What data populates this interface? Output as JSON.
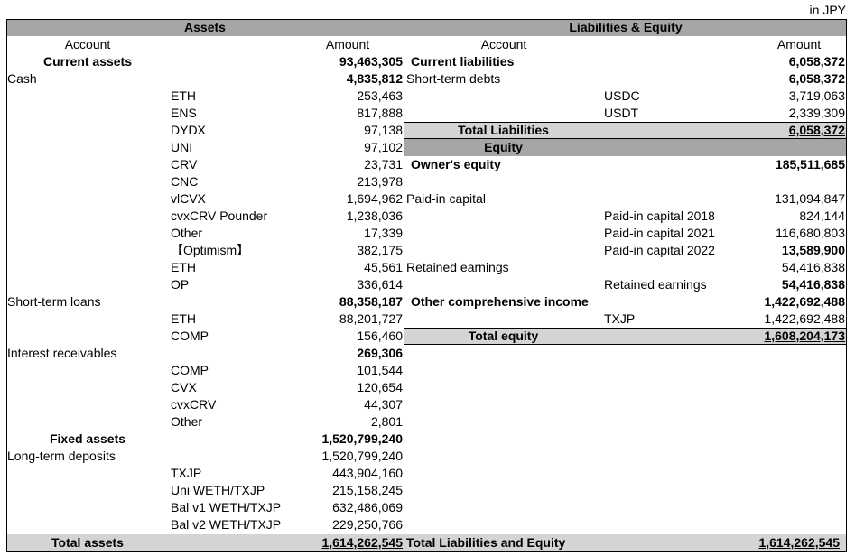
{
  "currency_note": "in JPY",
  "assets": {
    "header": "Assets",
    "col_account": "Account",
    "col_amount": "Amount",
    "rows": [
      {
        "l1": "Current assets",
        "l2": "",
        "amount": "93,463,305",
        "style": "section"
      },
      {
        "l1": "Cash",
        "l2": "",
        "amount": "4,835,812",
        "style": "group"
      },
      {
        "l1": "",
        "l2": "ETH",
        "amount": "253,463",
        "style": "item"
      },
      {
        "l1": "",
        "l2": "ENS",
        "amount": "817,888",
        "style": "item"
      },
      {
        "l1": "",
        "l2": "DYDX",
        "amount": "97,138",
        "style": "item"
      },
      {
        "l1": "",
        "l2": "UNI",
        "amount": "97,102",
        "style": "item"
      },
      {
        "l1": "",
        "l2": "CRV",
        "amount": "23,731",
        "style": "item"
      },
      {
        "l1": "",
        "l2": "CNC",
        "amount": "213,978",
        "style": "item"
      },
      {
        "l1": "",
        "l2": "vlCVX",
        "amount": "1,694,962",
        "style": "item"
      },
      {
        "l1": "",
        "l2": "cvxCRV Pounder",
        "amount": "1,238,036",
        "style": "item"
      },
      {
        "l1": "",
        "l2": "Other",
        "amount": "17,339",
        "style": "item"
      },
      {
        "l1": "",
        "l2": "【Optimism】",
        "amount": "382,175",
        "style": "item"
      },
      {
        "l1": "",
        "l2": "ETH",
        "amount": "45,561",
        "style": "item"
      },
      {
        "l1": "",
        "l2": "OP",
        "amount": "336,614",
        "style": "item"
      },
      {
        "l1": "Short-term loans",
        "l2": "",
        "amount": "88,358,187",
        "style": "group"
      },
      {
        "l1": "",
        "l2": "ETH",
        "amount": "88,201,727",
        "style": "item"
      },
      {
        "l1": "",
        "l2": "COMP",
        "amount": "156,460",
        "style": "item"
      },
      {
        "l1": "Interest receivables",
        "l2": "",
        "amount": "269,306",
        "style": "group"
      },
      {
        "l1": "",
        "l2": "COMP",
        "amount": "101,544",
        "style": "item"
      },
      {
        "l1": "",
        "l2": "CVX",
        "amount": "120,654",
        "style": "item"
      },
      {
        "l1": "",
        "l2": "cvxCRV",
        "amount": "44,307",
        "style": "item"
      },
      {
        "l1": "",
        "l2": "Other",
        "amount": "2,801",
        "style": "item"
      },
      {
        "l1": "Fixed assets",
        "l2": "",
        "amount": "1,520,799,240",
        "style": "section"
      },
      {
        "l1": "Long-term deposits",
        "l2": "",
        "amount": "1,520,799,240",
        "style": "group-plain"
      },
      {
        "l1": "",
        "l2": "TXJP",
        "amount": "443,904,160",
        "style": "item"
      },
      {
        "l1": "",
        "l2": "Uni WETH/TXJP",
        "amount": "215,158,245",
        "style": "item"
      },
      {
        "l1": "",
        "l2": "Bal v1 WETH/TXJP",
        "amount": "632,486,069",
        "style": "item"
      },
      {
        "l1": "",
        "l2": "Bal v2 WETH/TXJP",
        "amount": "229,250,766",
        "style": "item"
      }
    ],
    "total_label": "Total assets",
    "total_amount": "1,614,262,545"
  },
  "liabilities": {
    "header": "Liabilities & Equity",
    "col_account": "Account",
    "col_amount": "Amount",
    "rows": [
      {
        "l1": "Current liabilities",
        "l2": "",
        "amount": "6,058,372",
        "style": "section"
      },
      {
        "l1": "Short-term debts",
        "l2": "",
        "amount": "6,058,372",
        "style": "group"
      },
      {
        "l1": "",
        "l2": "USDC",
        "amount": "3,719,063",
        "style": "item"
      },
      {
        "l1": "",
        "l2": "USDT",
        "amount": "2,339,309",
        "style": "item"
      },
      {
        "l1": "Total Liabilities",
        "l2": "",
        "amount": "6,058,372",
        "style": "total"
      },
      {
        "l1": "Equity",
        "l2": "",
        "amount": "",
        "style": "band"
      },
      {
        "l1": "Owner's equity",
        "l2": "",
        "amount": "185,511,685",
        "style": "section"
      },
      {
        "l1": "",
        "l2": "",
        "amount": "",
        "style": "blank"
      },
      {
        "l1": "Paid-in capital",
        "l2": "",
        "amount": "131,094,847",
        "style": "group-plain"
      },
      {
        "l1": "",
        "l2": "Paid-in capital 2018",
        "amount": "824,144",
        "style": "item"
      },
      {
        "l1": "",
        "l2": "Paid-in capital 2021",
        "amount": "116,680,803",
        "style": "item"
      },
      {
        "l1": "",
        "l2": "Paid-in capital 2022",
        "amount": "13,589,900",
        "style": "item-bold"
      },
      {
        "l1": "Retained earnings",
        "l2": "",
        "amount": "54,416,838",
        "style": "group-plain"
      },
      {
        "l1": "",
        "l2": "Retained earnings",
        "amount": "54,416,838",
        "style": "item-bold"
      },
      {
        "l1": "Other comprehensive income",
        "l2": "",
        "amount": "1,422,692,488",
        "style": "section"
      },
      {
        "l1": "",
        "l2": "TXJP",
        "amount": "1,422,692,488",
        "style": "item"
      },
      {
        "l1": "Total equity",
        "l2": "",
        "amount": "1,608,204,173",
        "style": "total"
      }
    ],
    "total_label": "Total Liabilities and Equity",
    "total_amount": "1,614,262,545"
  }
}
